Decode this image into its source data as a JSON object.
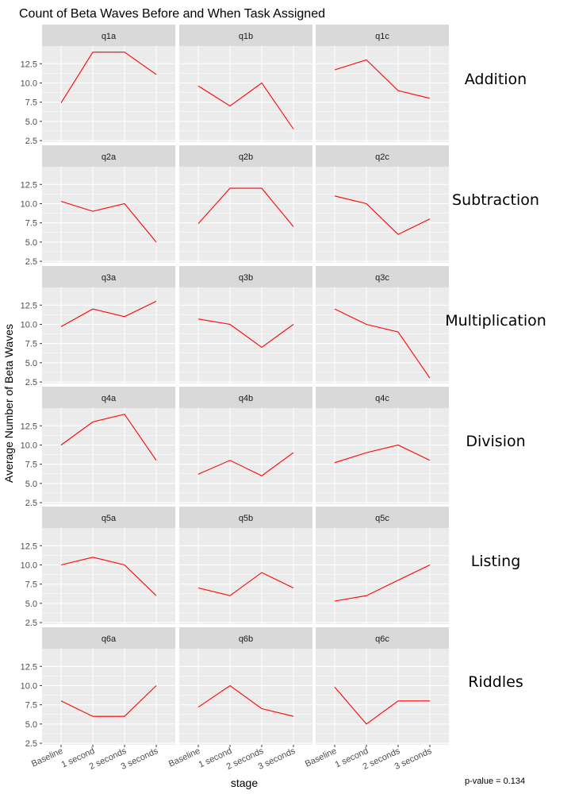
{
  "chart_data": {
    "type": "line",
    "title": "Count of Beta Waves Before and When Task Assigned",
    "xlabel": "stage",
    "ylabel": "Average Number of Beta Waves",
    "categories": [
      "Baseline",
      "1 second",
      "2 seconds",
      "3 seconds"
    ],
    "ylim": [
      2.3,
      14.8
    ],
    "yticks": [
      2.5,
      5.0,
      7.5,
      10.0,
      12.5
    ],
    "ytick_labels": [
      "2.5",
      "5.0",
      "7.5",
      "10.0",
      "12.5"
    ],
    "line_color": "#ff0000",
    "panel_bg": "#ebebeb",
    "strip_bg": "#d9d9d9",
    "grid_color": "#ffffff",
    "grid": true,
    "rows": [
      {
        "label": "Addition",
        "panels": [
          {
            "name": "q1a",
            "values": [
              7.4,
              14.0,
              14.0,
              11.1
            ]
          },
          {
            "name": "q1b",
            "values": [
              9.6,
              7.0,
              10.0,
              4.0
            ]
          },
          {
            "name": "q1c",
            "values": [
              11.7,
              13.0,
              9.0,
              8.0
            ]
          }
        ]
      },
      {
        "label": "Subtraction",
        "panels": [
          {
            "name": "q2a",
            "values": [
              10.3,
              9.0,
              10.0,
              5.0
            ]
          },
          {
            "name": "q2b",
            "values": [
              7.4,
              12.0,
              12.0,
              7.0
            ]
          },
          {
            "name": "q2c",
            "values": [
              11.0,
              10.0,
              6.0,
              8.0
            ]
          }
        ]
      },
      {
        "label": "Multiplication",
        "panels": [
          {
            "name": "q3a",
            "values": [
              9.7,
              12.0,
              11.0,
              13.0
            ]
          },
          {
            "name": "q3b",
            "values": [
              10.7,
              10.0,
              7.0,
              10.0
            ]
          },
          {
            "name": "q3c",
            "values": [
              12.0,
              10.0,
              9.0,
              3.0
            ]
          }
        ]
      },
      {
        "label": "Division",
        "panels": [
          {
            "name": "q4a",
            "values": [
              10.0,
              13.0,
              14.0,
              8.0
            ]
          },
          {
            "name": "q4b",
            "values": [
              6.2,
              8.0,
              6.0,
              9.0
            ]
          },
          {
            "name": "q4c",
            "values": [
              7.7,
              9.0,
              10.0,
              8.0
            ]
          }
        ]
      },
      {
        "label": "Listing",
        "panels": [
          {
            "name": "q5a",
            "values": [
              10.0,
              11.0,
              10.0,
              6.0
            ]
          },
          {
            "name": "q5b",
            "values": [
              7.0,
              6.0,
              9.0,
              7.0
            ]
          },
          {
            "name": "q5c",
            "values": [
              5.3,
              6.0,
              8.0,
              10.0
            ]
          }
        ]
      },
      {
        "label": "Riddles",
        "panels": [
          {
            "name": "q6a",
            "values": [
              8.0,
              6.0,
              6.0,
              10.0
            ]
          },
          {
            "name": "q6b",
            "values": [
              7.2,
              10.0,
              7.0,
              6.0
            ]
          },
          {
            "name": "q6c",
            "values": [
              9.8,
              5.0,
              8.0,
              8.0
            ]
          }
        ]
      }
    ],
    "annotation": "p-value = 0.134"
  }
}
